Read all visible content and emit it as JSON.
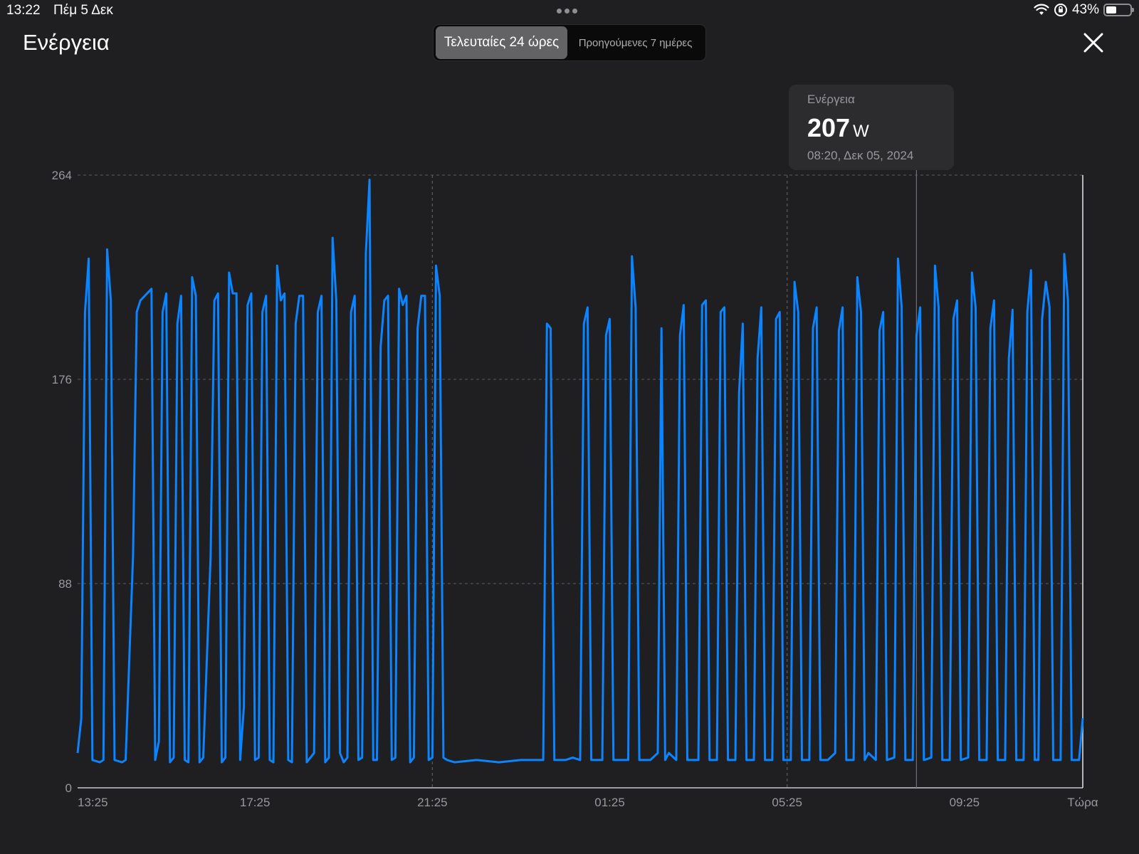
{
  "status_bar": {
    "time": "13:22",
    "date": "Πέμ 5 Δεκ",
    "battery_percent": "43%",
    "battery_level": 0.43
  },
  "header": {
    "title": "Ενέργεια",
    "segments": [
      "Τελευταίες 24 ώρες",
      "Προηγούμενες 7 ημέρες"
    ],
    "selected_segment": 0
  },
  "tooltip": {
    "label": "Ενέργεια",
    "value": "207",
    "unit": "W",
    "time": "08:20, Δεκ 05, 2024"
  },
  "colors": {
    "background": "#1f1f21",
    "line": "#0a84ff",
    "grid": "#5a5a5e",
    "text_secondary": "#98989d"
  },
  "chart_data": {
    "type": "line",
    "title": "",
    "xlabel": "",
    "ylabel": "",
    "x_ticks": [
      "13:25",
      "17:25",
      "21:25",
      "01:25",
      "05:25",
      "09:25",
      "Τώρα"
    ],
    "y_ticks": [
      0,
      88,
      176,
      264
    ],
    "ylim": [
      0,
      264
    ],
    "xlim": [
      "13:25",
      "Τώρα"
    ],
    "grid": true,
    "highlight": {
      "time": "08:20",
      "value": 207
    },
    "series": [
      {
        "points": [
          [
            "13:25",
            15
          ],
          [
            "13:30",
            30
          ],
          [
            "13:35",
            205
          ],
          [
            "13:40",
            228
          ],
          [
            "13:45",
            12
          ],
          [
            "13:55",
            11
          ],
          [
            "14:00",
            12
          ],
          [
            "14:05",
            232
          ],
          [
            "14:10",
            210
          ],
          [
            "14:15",
            12
          ],
          [
            "14:25",
            11
          ],
          [
            "14:30",
            12
          ],
          [
            "14:40",
            100
          ],
          [
            "14:45",
            205
          ],
          [
            "14:50",
            210
          ],
          [
            "15:05",
            215
          ],
          [
            "15:10",
            12
          ],
          [
            "15:15",
            20
          ],
          [
            "15:20",
            205
          ],
          [
            "15:25",
            213
          ],
          [
            "15:30",
            11
          ],
          [
            "15:35",
            13
          ],
          [
            "15:40",
            200
          ],
          [
            "15:45",
            212
          ],
          [
            "15:50",
            12
          ],
          [
            "15:55",
            11
          ],
          [
            "16:00",
            220
          ],
          [
            "16:05",
            212
          ],
          [
            "16:10",
            11
          ],
          [
            "16:15",
            13
          ],
          [
            "16:25",
            100
          ],
          [
            "16:30",
            210
          ],
          [
            "16:35",
            213
          ],
          [
            "16:40",
            11
          ],
          [
            "16:45",
            13
          ],
          [
            "16:50",
            222
          ],
          [
            "16:55",
            213
          ],
          [
            "17:00",
            213
          ],
          [
            "17:05",
            12
          ],
          [
            "17:10",
            35
          ],
          [
            "17:15",
            208
          ],
          [
            "17:20",
            213
          ],
          [
            "17:25",
            12
          ],
          [
            "17:30",
            13
          ],
          [
            "17:35",
            205
          ],
          [
            "17:40",
            212
          ],
          [
            "17:45",
            12
          ],
          [
            "17:50",
            11
          ],
          [
            "17:55",
            225
          ],
          [
            "18:00",
            210
          ],
          [
            "18:05",
            213
          ],
          [
            "18:10",
            12
          ],
          [
            "18:15",
            11
          ],
          [
            "18:20",
            200
          ],
          [
            "18:25",
            212
          ],
          [
            "18:30",
            212
          ],
          [
            "18:35",
            11
          ],
          [
            "18:45",
            15
          ],
          [
            "18:50",
            205
          ],
          [
            "18:55",
            212
          ],
          [
            "19:00",
            11
          ],
          [
            "19:05",
            13
          ],
          [
            "19:10",
            237
          ],
          [
            "19:15",
            210
          ],
          [
            "19:20",
            15
          ],
          [
            "19:25",
            11
          ],
          [
            "19:30",
            13
          ],
          [
            "19:35",
            205
          ],
          [
            "19:40",
            212
          ],
          [
            "19:45",
            12
          ],
          [
            "19:50",
            13
          ],
          [
            "19:55",
            230
          ],
          [
            "20:00",
            262
          ],
          [
            "20:05",
            12
          ],
          [
            "20:10",
            12
          ],
          [
            "20:15",
            190
          ],
          [
            "20:20",
            210
          ],
          [
            "20:25",
            212
          ],
          [
            "20:30",
            12
          ],
          [
            "20:35",
            13
          ],
          [
            "20:40",
            215
          ],
          [
            "20:45",
            208
          ],
          [
            "20:50",
            212
          ],
          [
            "20:55",
            11
          ],
          [
            "21:00",
            13
          ],
          [
            "21:05",
            198
          ],
          [
            "21:10",
            212
          ],
          [
            "21:15",
            212
          ],
          [
            "21:20",
            12
          ],
          [
            "21:25",
            13
          ],
          [
            "21:30",
            225
          ],
          [
            "21:35",
            212
          ],
          [
            "21:40",
            13
          ],
          [
            "21:45",
            12
          ],
          [
            "21:55",
            11
          ],
          [
            "22:25",
            12
          ],
          [
            "22:55",
            11
          ],
          [
            "23:25",
            12
          ],
          [
            "23:55",
            12
          ],
          [
            "24:00",
            200
          ],
          [
            "24:05",
            198
          ],
          [
            "24:10",
            12
          ],
          [
            "24:25",
            12
          ],
          [
            "24:35",
            13
          ],
          [
            "24:45",
            12
          ],
          [
            "24:50",
            200
          ],
          [
            "24:55",
            207
          ],
          [
            "25:00",
            12
          ],
          [
            "25:15",
            12
          ],
          [
            "25:20",
            195
          ],
          [
            "25:25",
            202
          ],
          [
            "25:30",
            12
          ],
          [
            "25:50",
            12
          ],
          [
            "25:55",
            229
          ],
          [
            "26:00",
            207
          ],
          [
            "26:05",
            12
          ],
          [
            "26:20",
            12
          ],
          [
            "26:30",
            15
          ],
          [
            "26:35",
            198
          ],
          [
            "26:40",
            12
          ],
          [
            "26:45",
            15
          ],
          [
            "26:55",
            12
          ],
          [
            "27:00",
            195
          ],
          [
            "27:05",
            208
          ],
          [
            "27:10",
            12
          ],
          [
            "27:15",
            12
          ],
          [
            "27:25",
            12
          ],
          [
            "27:30",
            208
          ],
          [
            "27:35",
            210
          ],
          [
            "27:40",
            12
          ],
          [
            "27:50",
            12
          ],
          [
            "27:55",
            205
          ],
          [
            "28:00",
            207
          ],
          [
            "28:05",
            12
          ],
          [
            "28:15",
            12
          ],
          [
            "28:20",
            170
          ],
          [
            "28:25",
            200
          ],
          [
            "28:30",
            12
          ],
          [
            "28:40",
            12
          ],
          [
            "28:45",
            185
          ],
          [
            "28:50",
            207
          ],
          [
            "28:55",
            12
          ],
          [
            "29:05",
            12
          ],
          [
            "29:10",
            202
          ],
          [
            "29:15",
            205
          ],
          [
            "29:20",
            12
          ],
          [
            "29:30",
            12
          ],
          [
            "29:35",
            218
          ],
          [
            "29:40",
            205
          ],
          [
            "29:45",
            12
          ],
          [
            "29:55",
            12
          ],
          [
            "30:00",
            198
          ],
          [
            "30:05",
            207
          ],
          [
            "30:10",
            12
          ],
          [
            "30:20",
            12
          ],
          [
            "30:30",
            15
          ],
          [
            "30:35",
            197
          ],
          [
            "30:40",
            207
          ],
          [
            "30:45",
            12
          ],
          [
            "30:55",
            12
          ],
          [
            "31:00",
            220
          ],
          [
            "31:05",
            205
          ],
          [
            "31:10",
            12
          ],
          [
            "31:15",
            15
          ],
          [
            "31:25",
            12
          ],
          [
            "31:30",
            197
          ],
          [
            "31:35",
            205
          ],
          [
            "31:40",
            12
          ],
          [
            "31:50",
            13
          ],
          [
            "31:55",
            228
          ],
          [
            "32:00",
            207
          ],
          [
            "32:05",
            12
          ],
          [
            "32:15",
            12
          ],
          [
            "32:20",
            195
          ],
          [
            "32:25",
            207
          ],
          [
            "32:30",
            12
          ],
          [
            "32:40",
            13
          ],
          [
            "32:45",
            225
          ],
          [
            "32:50",
            207
          ],
          [
            "32:55",
            12
          ],
          [
            "33:05",
            12
          ],
          [
            "33:10",
            202
          ],
          [
            "33:15",
            210
          ],
          [
            "33:20",
            12
          ],
          [
            "33:30",
            13
          ],
          [
            "33:35",
            222
          ],
          [
            "33:40",
            207
          ],
          [
            "33:45",
            12
          ],
          [
            "33:55",
            12
          ],
          [
            "34:00",
            198
          ],
          [
            "34:05",
            210
          ],
          [
            "34:10",
            12
          ],
          [
            "34:20",
            12
          ],
          [
            "34:25",
            185
          ],
          [
            "34:30",
            206
          ],
          [
            "34:35",
            12
          ],
          [
            "34:45",
            12
          ],
          [
            "34:50",
            205
          ],
          [
            "34:55",
            223
          ],
          [
            "35:00",
            12
          ],
          [
            "35:05",
            12
          ],
          [
            "35:10",
            202
          ],
          [
            "35:15",
            218
          ],
          [
            "35:20",
            207
          ],
          [
            "35:25",
            12
          ],
          [
            "35:35",
            12
          ],
          [
            "35:40",
            230
          ],
          [
            "35:45",
            210
          ],
          [
            "35:50",
            12
          ],
          [
            "35:55",
            12
          ],
          [
            "36:00",
            12
          ],
          [
            "36:05",
            30
          ]
        ]
      }
    ]
  }
}
